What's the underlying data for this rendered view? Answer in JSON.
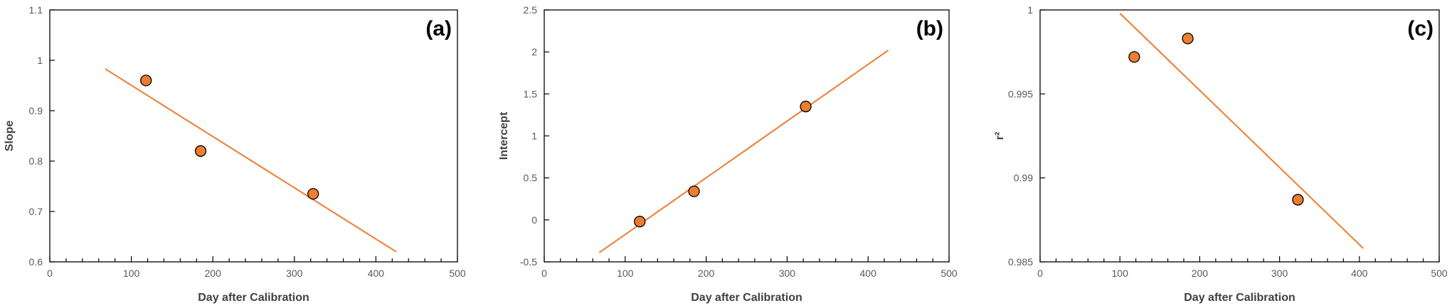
{
  "chart_data": [
    {
      "type": "scatter",
      "panel_label": "(a)",
      "xlabel": "Day after Calibration",
      "ylabel": "Slope",
      "xlim": [
        0,
        500
      ],
      "ylim": [
        0.6,
        1.1
      ],
      "x_ticks": [
        "0",
        "100",
        "200",
        "300",
        "400",
        "500"
      ],
      "y_ticks": [
        "0.6",
        "0.7",
        "0.8",
        "0.9",
        "1",
        "1.1"
      ],
      "x_minor_step": 20,
      "grid": false,
      "legend": "none",
      "points": [
        {
          "x": 118,
          "y": 0.96
        },
        {
          "x": 185,
          "y": 0.82
        },
        {
          "x": 323,
          "y": 0.735
        }
      ],
      "trendline": {
        "x": [
          68,
          425
        ],
        "y": [
          0.983,
          0.62
        ]
      },
      "marker_color": "#ED7D31",
      "line_color": "#ED7D31"
    },
    {
      "type": "scatter",
      "panel_label": "(b)",
      "xlabel": "Day after Calibration",
      "ylabel": "Intercept",
      "xlim": [
        0,
        500
      ],
      "ylim": [
        -0.5,
        2.5
      ],
      "x_ticks": [
        "0",
        "100",
        "200",
        "300",
        "400",
        "500"
      ],
      "y_ticks": [
        "-0.5",
        "0",
        "0.5",
        "1",
        "1.5",
        "2",
        "2.5"
      ],
      "x_minor_step": 20,
      "grid": false,
      "legend": "none",
      "points": [
        {
          "x": 118,
          "y": -0.02
        },
        {
          "x": 185,
          "y": 0.34
        },
        {
          "x": 323,
          "y": 1.35
        }
      ],
      "trendline": {
        "x": [
          68,
          425
        ],
        "y": [
          -0.39,
          2.02
        ]
      },
      "marker_color": "#ED7D31",
      "line_color": "#ED7D31"
    },
    {
      "type": "scatter",
      "panel_label": "(c)",
      "xlabel": "Day after Calibration",
      "ylabel": "r²",
      "xlim": [
        0,
        500
      ],
      "ylim": [
        0.985,
        1
      ],
      "x_ticks": [
        "0",
        "100",
        "200",
        "300",
        "400",
        "500"
      ],
      "y_ticks": [
        "0.985",
        "0.99",
        "0.995",
        "1"
      ],
      "x_minor_step": 20,
      "grid": false,
      "legend": "none",
      "points": [
        {
          "x": 118,
          "y": 0.9972
        },
        {
          "x": 185,
          "y": 0.9983
        },
        {
          "x": 323,
          "y": 0.9887
        }
      ],
      "trendline": {
        "x": [
          100,
          405
        ],
        "y": [
          0.9998,
          0.9858
        ]
      },
      "marker_color": "#ED7D31",
      "line_color": "#ED7D31"
    }
  ]
}
